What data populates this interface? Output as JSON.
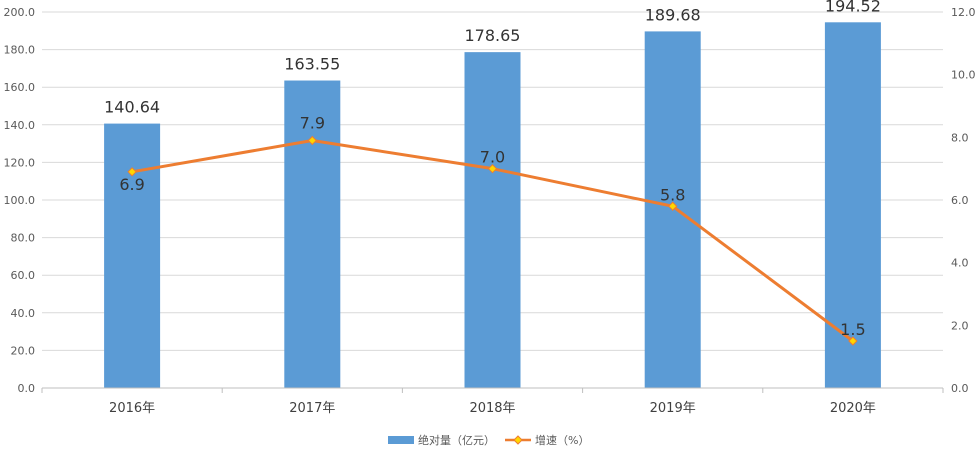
{
  "chart_data": {
    "type": "bar",
    "categories": [
      "2016年",
      "2017年",
      "2018年",
      "2019年",
      "2020年"
    ],
    "series": [
      {
        "name": "绝对量（亿元）",
        "type": "bar",
        "axis": "left",
        "values": [
          140.64,
          163.55,
          178.65,
          189.68,
          194.52
        ],
        "labels": [
          "140.64",
          "163.55",
          "178.65",
          "189.68",
          "194.52"
        ],
        "color": "#5B9BD5"
      },
      {
        "name": "增速（%）",
        "type": "line",
        "axis": "right",
        "values": [
          6.9,
          7.9,
          7.0,
          5.8,
          1.5
        ],
        "labels": [
          "6.9",
          "7.9",
          "7.0",
          "5.8",
          "1.5"
        ],
        "color": "#ED7D31",
        "marker_color": "#FFD700"
      }
    ],
    "y_left": {
      "ylim": [
        0,
        200
      ],
      "ticks": [
        "0.0",
        "20.0",
        "40.0",
        "60.0",
        "80.0",
        "100.0",
        "120.0",
        "140.0",
        "160.0",
        "180.0",
        "200.0"
      ]
    },
    "y_right": {
      "ylim": [
        0,
        12
      ],
      "ticks": [
        "0.0",
        "2.0",
        "4.0",
        "6.0",
        "8.0",
        "10.0",
        "12.0"
      ]
    },
    "grid": true,
    "legend_position": "bottom-center"
  }
}
